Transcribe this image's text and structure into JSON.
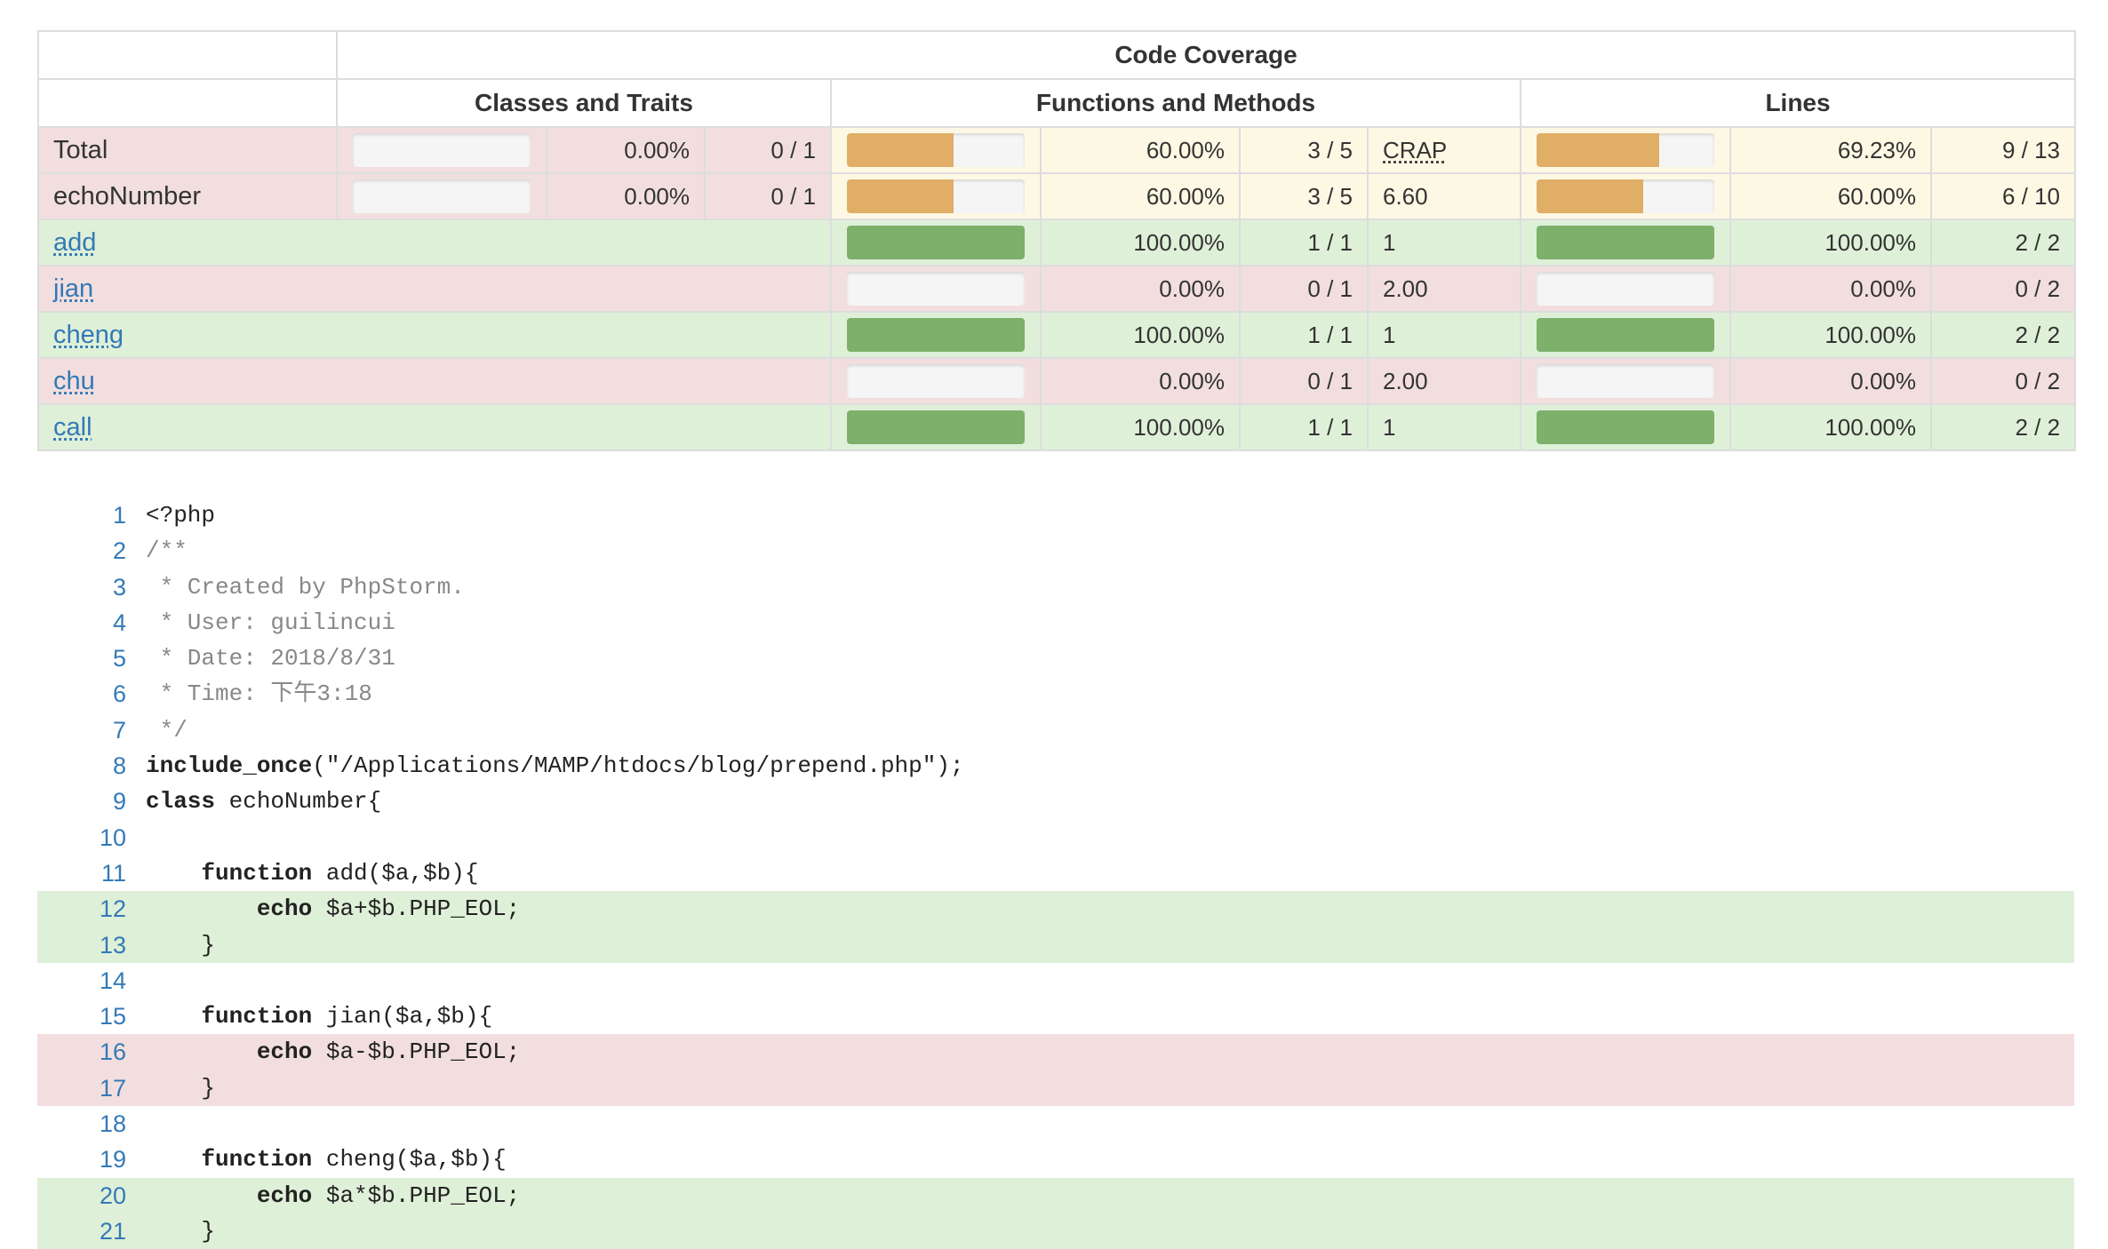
{
  "header": {
    "code_coverage": "Code Coverage",
    "classes_and_traits": "Classes and Traits",
    "functions_and_methods": "Functions and Methods",
    "lines": "Lines"
  },
  "rows": {
    "total": {
      "name": "Total",
      "classes_pct": "0.00%",
      "classes_count": "0 / 1",
      "classes_fill": 0,
      "methods_pct": "60.00%",
      "methods_count": "3 / 5",
      "methods_fill": 60,
      "crap": "CRAP",
      "lines_pct": "69.23%",
      "lines_count": "9 / 13",
      "lines_fill": 69.23
    },
    "class": {
      "name": "echoNumber",
      "classes_pct": "0.00%",
      "classes_count": "0 / 1",
      "classes_fill": 0,
      "methods_pct": "60.00%",
      "methods_count": "3 / 5",
      "methods_fill": 60,
      "crap": "6.60",
      "lines_pct": "60.00%",
      "lines_count": "6 / 10",
      "lines_fill": 60
    },
    "methods": [
      {
        "name": "add",
        "status": "success",
        "methods_pct": "100.00%",
        "methods_count": "1 / 1",
        "methods_fill": 100,
        "crap": "1",
        "lines_pct": "100.00%",
        "lines_count": "2 / 2",
        "lines_fill": 100
      },
      {
        "name": "jian",
        "status": "danger",
        "methods_pct": "0.00%",
        "methods_count": "0 / 1",
        "methods_fill": 0,
        "crap": "2.00",
        "lines_pct": "0.00%",
        "lines_count": "0 / 2",
        "lines_fill": 0
      },
      {
        "name": "cheng",
        "status": "success",
        "methods_pct": "100.00%",
        "methods_count": "1 / 1",
        "methods_fill": 100,
        "crap": "1",
        "lines_pct": "100.00%",
        "lines_count": "2 / 2",
        "lines_fill": 100
      },
      {
        "name": "chu",
        "status": "danger",
        "methods_pct": "0.00%",
        "methods_count": "0 / 1",
        "methods_fill": 0,
        "crap": "2.00",
        "lines_pct": "0.00%",
        "lines_count": "0 / 2",
        "lines_fill": 0
      },
      {
        "name": "call",
        "status": "success",
        "methods_pct": "100.00%",
        "methods_count": "1 / 1",
        "methods_fill": 100,
        "crap": "1",
        "lines_pct": "100.00%",
        "lines_count": "2 / 2",
        "lines_fill": 100
      }
    ]
  },
  "colors": {
    "success": "#dff0d8",
    "danger": "#f2dede",
    "warning": "#fcf8e3",
    "bar_ok": "#7cb06b",
    "bar_warn": "#e0ae66",
    "link": "#337ab7"
  },
  "code": [
    {
      "n": "1",
      "text": "<?php",
      "status": "",
      "style": ""
    },
    {
      "n": "2",
      "text": "/**",
      "status": "",
      "style": "comment"
    },
    {
      "n": "3",
      "text": " * Created by PhpStorm.",
      "status": "",
      "style": "comment"
    },
    {
      "n": "4",
      "text": " * User: guilincui",
      "status": "",
      "style": "comment"
    },
    {
      "n": "5",
      "text": " * Date: 2018/8/31",
      "status": "",
      "style": "comment"
    },
    {
      "n": "6",
      "text": " * Time: 下午3:18",
      "status": "",
      "style": "comment"
    },
    {
      "n": "7",
      "text": " */",
      "status": "",
      "style": "comment"
    },
    {
      "n": "8",
      "kw": "include_once",
      "text": "(\"/Applications/MAMP/htdocs/blog/prepend.php\");",
      "status": "",
      "style": ""
    },
    {
      "n": "9",
      "kw": "class",
      "text": " echoNumber{",
      "status": "",
      "style": ""
    },
    {
      "n": "10",
      "text": "",
      "status": "",
      "style": ""
    },
    {
      "n": "11",
      "indent": "    ",
      "kw": "function",
      "text": " add($a,$b){",
      "status": "",
      "style": ""
    },
    {
      "n": "12",
      "indent": "        ",
      "kw": "echo",
      "text": " $a+$b.PHP_EOL;",
      "status": "covered",
      "style": ""
    },
    {
      "n": "13",
      "text": "    }",
      "status": "covered",
      "style": ""
    },
    {
      "n": "14",
      "text": "",
      "status": "",
      "style": ""
    },
    {
      "n": "15",
      "indent": "    ",
      "kw": "function",
      "text": " jian($a,$b){",
      "status": "",
      "style": ""
    },
    {
      "n": "16",
      "indent": "        ",
      "kw": "echo",
      "text": " $a-$b.PHP_EOL;",
      "status": "uncovered",
      "style": ""
    },
    {
      "n": "17",
      "text": "    }",
      "status": "uncovered",
      "style": ""
    },
    {
      "n": "18",
      "text": "",
      "status": "",
      "style": ""
    },
    {
      "n": "19",
      "indent": "    ",
      "kw": "function",
      "text": " cheng($a,$b){",
      "status": "",
      "style": ""
    },
    {
      "n": "20",
      "indent": "        ",
      "kw": "echo",
      "text": " $a*$b.PHP_EOL;",
      "status": "covered",
      "style": ""
    },
    {
      "n": "21",
      "text": "    }",
      "status": "covered",
      "style": ""
    }
  ]
}
